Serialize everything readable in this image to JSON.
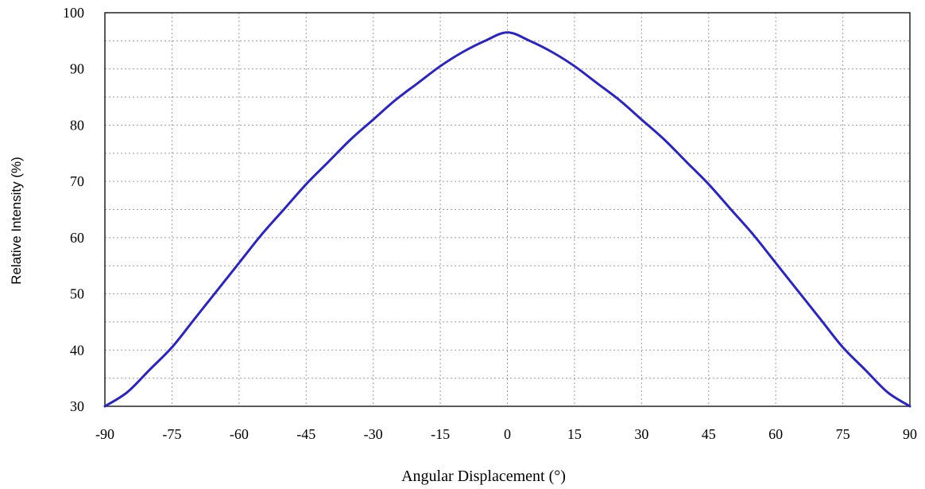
{
  "chart_data": {
    "type": "line",
    "xlabel": "Angular Displacement (°)",
    "ylabel": "Relative Intensity (%)",
    "xlim": [
      -90,
      90
    ],
    "ylim": [
      30,
      100
    ],
    "xticks": [
      -90,
      -75,
      -60,
      -45,
      -30,
      -15,
      0,
      15,
      30,
      45,
      60,
      75,
      90
    ],
    "xtick_labels": [
      "-90",
      "-75",
      "-60",
      "-45",
      "-30",
      "-15",
      "0",
      "15",
      "30",
      "45",
      "60",
      "75",
      "90"
    ],
    "yticks": [
      30,
      40,
      50,
      60,
      70,
      80,
      90,
      100
    ],
    "ytick_labels": [
      "30",
      "40",
      "50",
      "60",
      "70",
      "80",
      "90",
      "100"
    ],
    "grid": true,
    "series": [
      {
        "color": "#2a24c8",
        "x": [
          -90,
          -85,
          -80,
          -75,
          -70,
          -65,
          -60,
          -55,
          -50,
          -45,
          -40,
          -35,
          -30,
          -25,
          -20,
          -15,
          -10,
          -5,
          0,
          5,
          10,
          15,
          20,
          25,
          30,
          35,
          40,
          45,
          50,
          55,
          60,
          65,
          70,
          75,
          80,
          85,
          90
        ],
        "y": [
          30,
          32.5,
          36.5,
          40.5,
          45.5,
          50.5,
          55.5,
          60.5,
          65,
          69.5,
          73.5,
          77.5,
          81,
          84.5,
          87.5,
          90.5,
          93,
          95,
          96.5,
          95,
          93,
          90.5,
          87.5,
          84.5,
          81,
          77.5,
          73.5,
          69.5,
          65,
          60.5,
          55.5,
          50.5,
          45.5,
          40.5,
          36.5,
          32.5,
          30
        ]
      }
    ]
  }
}
